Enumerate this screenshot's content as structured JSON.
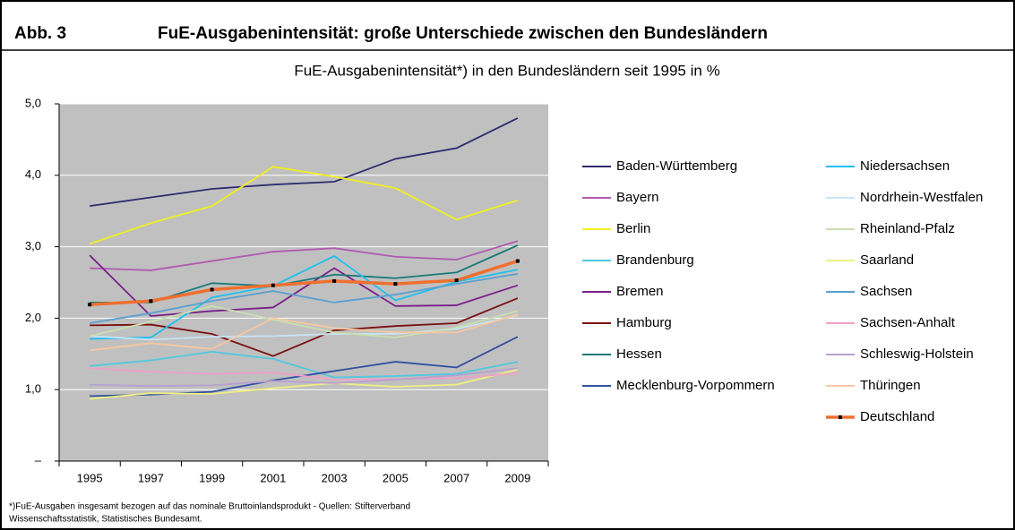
{
  "header": {
    "label": "Abb. 3",
    "title": "FuE-Ausgabenintensität: große Unterschiede zwischen den Bundesländern"
  },
  "chart_data": {
    "type": "line",
    "title": "FuE-Ausgabenintensität*) in den Bundesländern seit 1995 in %",
    "categories": [
      "1995",
      "1997",
      "1999",
      "2001",
      "2003",
      "2005",
      "2007",
      "2009"
    ],
    "ylim": [
      0,
      5
    ],
    "yticks": [
      {
        "value": 0,
        "label": "–"
      },
      {
        "value": 1,
        "label": "1,0"
      },
      {
        "value": 2,
        "label": "2,0"
      },
      {
        "value": 3,
        "label": "3,0"
      },
      {
        "value": 4,
        "label": "4,0"
      },
      {
        "value": 5,
        "label": "5,0"
      }
    ],
    "grid": true,
    "series": [
      {
        "name": "Baden-Württemberg",
        "color": "#2e2c6e",
        "values": [
          3.57,
          3.69,
          3.81,
          3.87,
          3.91,
          4.23,
          4.38,
          4.8
        ]
      },
      {
        "name": "Bayern",
        "color": "#b05cb0",
        "values": [
          2.7,
          2.67,
          2.8,
          2.93,
          2.98,
          2.86,
          2.82,
          3.08
        ]
      },
      {
        "name": "Berlin",
        "color": "#f0f020",
        "values": [
          3.04,
          3.33,
          3.57,
          4.12,
          3.98,
          3.82,
          3.38,
          3.65
        ]
      },
      {
        "name": "Brandenburg",
        "color": "#50c8e0",
        "values": [
          1.33,
          1.41,
          1.53,
          1.43,
          1.17,
          1.19,
          1.22,
          1.39
        ]
      },
      {
        "name": "Bremen",
        "color": "#7a1f8a",
        "values": [
          2.88,
          2.03,
          2.1,
          2.15,
          2.7,
          2.17,
          2.18,
          2.46
        ]
      },
      {
        "name": "Hamburg",
        "color": "#7a1010",
        "values": [
          1.9,
          1.91,
          1.78,
          1.47,
          1.83,
          1.89,
          1.93,
          2.28
        ]
      },
      {
        "name": "Hessen",
        "color": "#1a7a7a",
        "values": [
          2.22,
          2.22,
          2.49,
          2.45,
          2.61,
          2.56,
          2.64,
          3.02
        ]
      },
      {
        "name": "Mecklenburg-Vorpommern",
        "color": "#3050a0",
        "values": [
          0.91,
          0.93,
          0.97,
          1.13,
          1.26,
          1.39,
          1.31,
          1.74
        ]
      },
      {
        "name": "Niedersachsen",
        "color": "#20c0f0",
        "values": [
          1.71,
          1.73,
          2.29,
          2.45,
          2.87,
          2.25,
          2.51,
          2.68
        ]
      },
      {
        "name": "Nordrhein-Westfalen",
        "color": "#c8e4f4",
        "values": [
          1.75,
          1.7,
          1.74,
          1.75,
          1.78,
          1.78,
          1.85,
          2.04
        ]
      },
      {
        "name": "Rheinland-Pfalz",
        "color": "#c8e0b0",
        "values": [
          1.75,
          1.95,
          2.17,
          1.98,
          1.8,
          1.73,
          1.87,
          2.1
        ]
      },
      {
        "name": "Saarland",
        "color": "#f0f080",
        "values": [
          0.87,
          0.95,
          0.94,
          1.02,
          1.09,
          1.04,
          1.07,
          1.28
        ]
      },
      {
        "name": "Sachsen",
        "color": "#5aa0d0",
        "values": [
          1.93,
          2.07,
          2.24,
          2.38,
          2.22,
          2.33,
          2.48,
          2.62
        ]
      },
      {
        "name": "Sachsen-Anhalt",
        "color": "#f0a0c8",
        "values": [
          1.3,
          1.25,
          1.22,
          1.24,
          1.14,
          1.15,
          1.16,
          1.23
        ]
      },
      {
        "name": "Schleswig-Holstein",
        "color": "#b8a0d0",
        "values": [
          1.07,
          1.05,
          1.06,
          1.12,
          1.09,
          1.14,
          1.2,
          1.3
        ]
      },
      {
        "name": "Thüringen",
        "color": "#f8c8a0",
        "values": [
          1.55,
          1.65,
          1.57,
          2.0,
          1.86,
          1.8,
          1.8,
          2.05
        ]
      },
      {
        "name": "Deutschland",
        "color": "#f07030",
        "values": [
          2.19,
          2.24,
          2.4,
          2.46,
          2.52,
          2.48,
          2.53,
          2.8
        ]
      }
    ],
    "footnote": [
      "*)FuE-Ausgaben insgesamt bezogen auf das nominale Bruttoinlandsprodukt - Quellen: Stifterverband",
      "Wissenschaftsstatistik, Statistisches Bundesamt."
    ]
  }
}
